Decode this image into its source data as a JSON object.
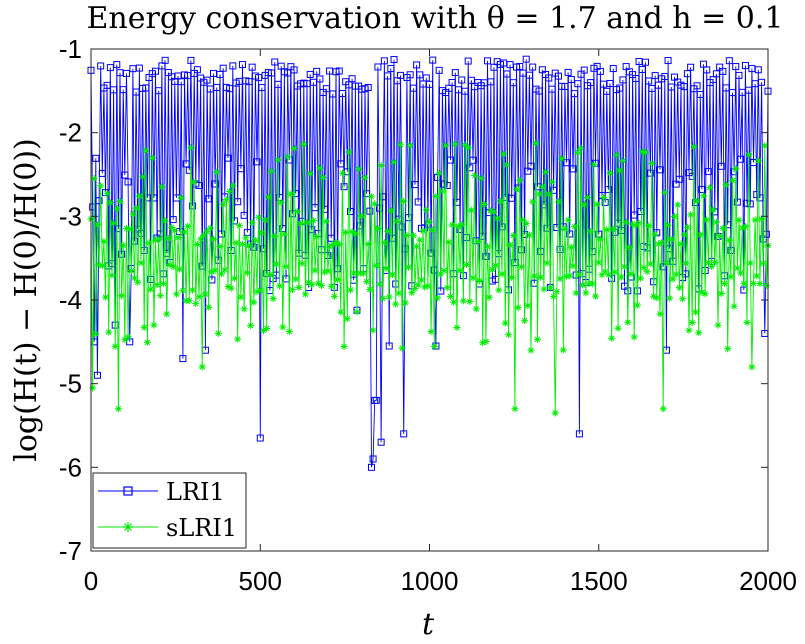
{
  "chart_data": {
    "type": "line",
    "title": "Energy conservation with θ = 1.7 and h = 0.1",
    "xlabel": "t",
    "ylabel": "log(H(t) − H(0)/H(0))",
    "xlim": [
      0,
      2000
    ],
    "ylim": [
      -7,
      -1
    ],
    "xticks": [
      0,
      500,
      1000,
      1500,
      2000
    ],
    "yticks": [
      -1,
      -2,
      -3,
      -4,
      -5,
      -6,
      -7
    ],
    "xtick_labels": [
      "0",
      "500",
      "1000",
      "1500",
      "2000"
    ],
    "ytick_labels": [
      "-1",
      "-2",
      "-3",
      "-4",
      "-5",
      "-6",
      "-7"
    ],
    "grid": false,
    "legend_position": "bottom-left",
    "series": [
      {
        "name": "LRI1",
        "color": "#0000ff",
        "marker": "square",
        "description": "oscillates between about -1.1 and -4, with deep dips",
        "upper_envelope": -1.1,
        "typical_lower": -3.9,
        "dips": [
          {
            "t": 10,
            "y": -4.5
          },
          {
            "t": 20,
            "y": -4.9
          },
          {
            "t": 70,
            "y": -4.3
          },
          {
            "t": 115,
            "y": -4.5
          },
          {
            "t": 270,
            "y": -4.7
          },
          {
            "t": 340,
            "y": -4.6
          },
          {
            "t": 500,
            "y": -5.65
          },
          {
            "t": 830,
            "y": -6.0
          },
          {
            "t": 835,
            "y": -5.9
          },
          {
            "t": 840,
            "y": -5.2
          },
          {
            "t": 845,
            "y": -5.2
          },
          {
            "t": 855,
            "y": -5.7
          },
          {
            "t": 880,
            "y": -4.55
          },
          {
            "t": 925,
            "y": -5.6
          },
          {
            "t": 1020,
            "y": -4.55
          },
          {
            "t": 1445,
            "y": -5.6
          },
          {
            "t": 1700,
            "y": -4.6
          },
          {
            "t": 1990,
            "y": -4.4
          }
        ]
      },
      {
        "name": "sLRI1",
        "color": "#00ee00",
        "marker": "star",
        "description": "oscillates between about -2.1 and -4, centered near -3.2",
        "upper_envelope": -2.1,
        "typical_lower": -4.0,
        "center_line": -3.2,
        "dips": [
          {
            "t": 5,
            "y": -5.05
          },
          {
            "t": 80,
            "y": -5.3
          },
          {
            "t": 330,
            "y": -4.8
          },
          {
            "t": 440,
            "y": -5.65
          },
          {
            "t": 1250,
            "y": -5.3
          },
          {
            "t": 1370,
            "y": -5.35
          },
          {
            "t": 1690,
            "y": -5.3
          },
          {
            "t": 1950,
            "y": -4.8
          }
        ]
      }
    ]
  }
}
